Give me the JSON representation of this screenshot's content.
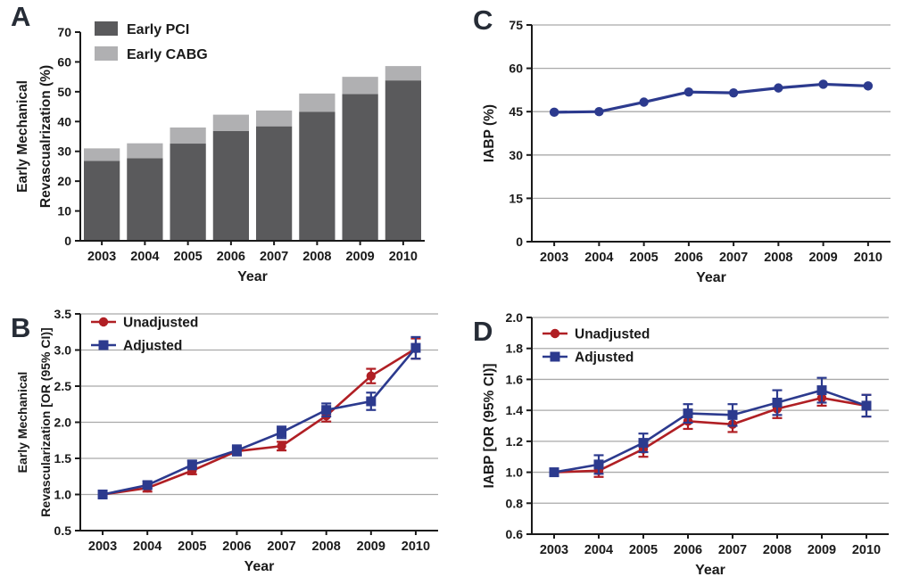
{
  "figure": {
    "background": "#ffffff",
    "text_color": "#1a1a1a",
    "gridline_color": "#a9a9a9",
    "axis_color": "#1a1a1a"
  },
  "chart_data": [
    {
      "panel_label": "A",
      "type": "bar",
      "stacked": true,
      "xlabel": "Year",
      "ylabel_lines": [
        "Early Mechanical",
        "Revascualrization (%)"
      ],
      "categories": [
        "2003",
        "2004",
        "2005",
        "2006",
        "2007",
        "2008",
        "2009",
        "2010"
      ],
      "ylim": [
        0,
        70
      ],
      "yticks": [
        0,
        10,
        20,
        30,
        40,
        50,
        60,
        70
      ],
      "ytick_decimals": 0,
      "grid": false,
      "legend_style": "swatch",
      "legend_position": "top-left-inside",
      "series": [
        {
          "name": "Early PCI",
          "color": "#5a5a5c",
          "values": [
            26.8,
            27.7,
            32.6,
            36.8,
            38.4,
            43.3,
            49.2,
            53.8
          ]
        },
        {
          "name": "Early CABG",
          "color": "#b0b0b2",
          "values": [
            4.2,
            5.0,
            5.4,
            5.5,
            5.3,
            6.1,
            5.8,
            4.8
          ]
        }
      ],
      "stack_totals": [
        31.0,
        32.7,
        38.0,
        42.3,
        43.7,
        49.4,
        55.0,
        58.6
      ]
    },
    {
      "panel_label": "C",
      "type": "line",
      "xlabel": "Year",
      "ylabel_lines": [
        "IABP (%)"
      ],
      "categories": [
        "2003",
        "2004",
        "2005",
        "2006",
        "2007",
        "2008",
        "2009",
        "2010"
      ],
      "ylim": [
        0,
        75
      ],
      "yticks": [
        0,
        15,
        30,
        45,
        60,
        75
      ],
      "ytick_decimals": 0,
      "grid": true,
      "gridlines": [
        15,
        30,
        45,
        60,
        75
      ],
      "legend_style": "none",
      "series": [
        {
          "name": "IABP",
          "color": "#2c3a8e",
          "marker": "circle",
          "values": [
            44.8,
            45.0,
            48.3,
            51.8,
            51.5,
            53.2,
            54.5,
            53.9
          ]
        }
      ]
    },
    {
      "panel_label": "B",
      "type": "line",
      "xlabel": "Year",
      "ylabel_lines": [
        "Early Mechanical",
        "Revascularization [OR (95% CI)]"
      ],
      "categories": [
        "2003",
        "2004",
        "2005",
        "2006",
        "2007",
        "2008",
        "2009",
        "2010"
      ],
      "ylim": [
        0.5,
        3.5
      ],
      "yticks": [
        0.5,
        1.0,
        1.5,
        2.0,
        2.5,
        3.0,
        3.5
      ],
      "ytick_decimals": 1,
      "grid": true,
      "gridlines": [
        1.0,
        1.5,
        2.0,
        2.5,
        3.0,
        3.5
      ],
      "legend_style": "marker",
      "legend_position": "top-left-inside",
      "series": [
        {
          "name": "Unadjusted",
          "color": "#b01f24",
          "marker": "circle",
          "values": [
            1.0,
            1.09,
            1.33,
            1.6,
            1.67,
            2.09,
            2.64,
            3.02
          ],
          "err": [
            0,
            0.05,
            0.05,
            0.05,
            0.06,
            0.08,
            0.1,
            0.14
          ]
        },
        {
          "name": "Adjusted",
          "color": "#2c3a8e",
          "marker": "square",
          "values": [
            1.0,
            1.13,
            1.41,
            1.61,
            1.86,
            2.17,
            2.29,
            3.03
          ],
          "err": [
            0,
            0.05,
            0.06,
            0.07,
            0.08,
            0.09,
            0.12,
            0.15
          ]
        }
      ]
    },
    {
      "panel_label": "D",
      "type": "line",
      "xlabel": "Year",
      "ylabel_lines": [
        "IABP [OR (95% CI)]"
      ],
      "categories": [
        "2003",
        "2004",
        "2005",
        "2006",
        "2007",
        "2008",
        "2009",
        "2010"
      ],
      "ylim": [
        0.6,
        2.0
      ],
      "yticks": [
        0.6,
        0.8,
        1.0,
        1.2,
        1.4,
        1.6,
        1.8,
        2.0
      ],
      "ytick_decimals": 1,
      "grid": true,
      "gridlines": [
        0.8,
        1.0,
        1.2,
        1.4,
        1.6,
        1.8,
        2.0
      ],
      "legend_style": "marker",
      "legend_position": "top-left-inside",
      "series": [
        {
          "name": "Unadjusted",
          "color": "#b01f24",
          "marker": "circle",
          "values": [
            1.0,
            1.01,
            1.15,
            1.33,
            1.31,
            1.41,
            1.48,
            1.43
          ],
          "err": [
            0,
            0.04,
            0.05,
            0.05,
            0.05,
            0.06,
            0.05,
            0.07
          ]
        },
        {
          "name": "Adjusted",
          "color": "#2c3a8e",
          "marker": "square",
          "values": [
            1.0,
            1.05,
            1.19,
            1.38,
            1.37,
            1.45,
            1.53,
            1.43
          ],
          "err": [
            0,
            0.06,
            0.06,
            0.06,
            0.07,
            0.08,
            0.08,
            0.07
          ]
        }
      ]
    }
  ]
}
